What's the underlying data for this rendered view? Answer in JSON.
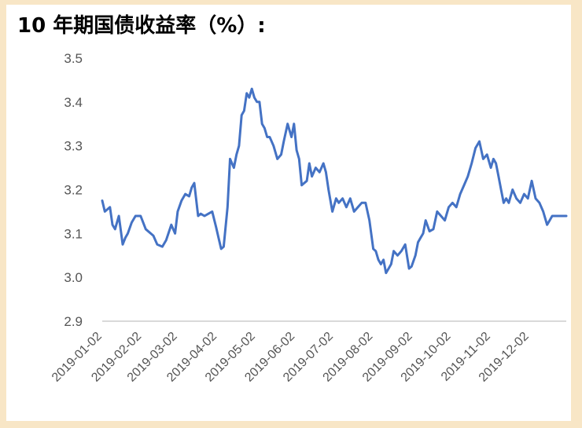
{
  "title": "10 年期国债收益率（%）:",
  "colors": {
    "background": "#f8e6c6",
    "line": "#4472c4",
    "axis": "#d9d9d9",
    "text": "#555555"
  },
  "chart_data": {
    "type": "line",
    "title": "10 年期国债收益率（%）:",
    "xlabel": "",
    "ylabel": "",
    "grid": false,
    "legend": "none",
    "ylim": [
      2.9,
      3.5
    ],
    "yticks": [
      "2.9",
      "3.0",
      "3.1",
      "3.2",
      "3.3",
      "3.4",
      "3.5"
    ],
    "xlim": [
      "2019-01-02",
      "2019-12-31"
    ],
    "xticks": [
      "2019-01-02",
      "2019-02-02",
      "2019-03-02",
      "2019-04-02",
      "2019-05-02",
      "2019-06-02",
      "2019-07-02",
      "2019-08-02",
      "2019-09-02",
      "2019-10-02",
      "2019-11-02",
      "2019-12-02"
    ],
    "series": [
      {
        "x": [
          "2019-01-02",
          "2019-01-04",
          "2019-01-08",
          "2019-01-10",
          "2019-01-12",
          "2019-01-15",
          "2019-01-18",
          "2019-01-20",
          "2019-01-22",
          "2019-01-25",
          "2019-01-28",
          "2019-02-01",
          "2019-02-05",
          "2019-02-11",
          "2019-02-14",
          "2019-02-18",
          "2019-02-21",
          "2019-02-25",
          "2019-02-28",
          "2019-03-02",
          "2019-03-05",
          "2019-03-08",
          "2019-03-11",
          "2019-03-13",
          "2019-03-15",
          "2019-03-18",
          "2019-03-20",
          "2019-03-23",
          "2019-03-26",
          "2019-03-29",
          "2019-04-01",
          "2019-04-03",
          "2019-04-05",
          "2019-04-07",
          "2019-04-10",
          "2019-04-12",
          "2019-04-15",
          "2019-04-17",
          "2019-04-19",
          "2019-04-21",
          "2019-04-23",
          "2019-04-25",
          "2019-04-27",
          "2019-04-29",
          "2019-05-01",
          "2019-05-03",
          "2019-05-05",
          "2019-05-07",
          "2019-05-09",
          "2019-05-11",
          "2019-05-13",
          "2019-05-16",
          "2019-05-19",
          "2019-05-22",
          "2019-05-24",
          "2019-05-27",
          "2019-05-30",
          "2019-06-01",
          "2019-06-03",
          "2019-06-05",
          "2019-06-07",
          "2019-06-09",
          "2019-06-11",
          "2019-06-13",
          "2019-06-15",
          "2019-06-18",
          "2019-06-21",
          "2019-06-24",
          "2019-06-26",
          "2019-06-28",
          "2019-07-01",
          "2019-07-04",
          "2019-07-06",
          "2019-07-09",
          "2019-07-12",
          "2019-07-15",
          "2019-07-18",
          "2019-07-21",
          "2019-07-24",
          "2019-07-27",
          "2019-07-30",
          "2019-08-02",
          "2019-08-04",
          "2019-08-06",
          "2019-08-08",
          "2019-08-10",
          "2019-08-12",
          "2019-08-14",
          "2019-08-16",
          "2019-08-18",
          "2019-08-21",
          "2019-08-24",
          "2019-08-27",
          "2019-08-30",
          "2019-09-01",
          "2019-09-04",
          "2019-09-06",
          "2019-09-08",
          "2019-09-10",
          "2019-09-12",
          "2019-09-15",
          "2019-09-18",
          "2019-09-21",
          "2019-09-24",
          "2019-09-27",
          "2019-09-30",
          "2019-10-03",
          "2019-10-06",
          "2019-10-09",
          "2019-10-12",
          "2019-10-15",
          "2019-10-18",
          "2019-10-21",
          "2019-10-24",
          "2019-10-27",
          "2019-10-30",
          "2019-11-02",
          "2019-11-04",
          "2019-11-06",
          "2019-11-08",
          "2019-11-10",
          "2019-11-12",
          "2019-11-14",
          "2019-11-16",
          "2019-11-19",
          "2019-11-22",
          "2019-11-25",
          "2019-11-28",
          "2019-12-01",
          "2019-12-04",
          "2019-12-07",
          "2019-12-10",
          "2019-12-13",
          "2019-12-16",
          "2019-12-18",
          "2019-12-20",
          "2019-12-22",
          "2019-12-24",
          "2019-12-26",
          "2019-12-28",
          "2019-12-31"
        ],
        "values": [
          3.175,
          3.15,
          3.16,
          3.12,
          3.11,
          3.14,
          3.075,
          3.09,
          3.1,
          3.125,
          3.14,
          3.14,
          3.11,
          3.095,
          3.075,
          3.07,
          3.085,
          3.12,
          3.1,
          3.15,
          3.175,
          3.19,
          3.185,
          3.205,
          3.215,
          3.14,
          3.145,
          3.14,
          3.145,
          3.15,
          3.115,
          3.09,
          3.065,
          3.07,
          3.16,
          3.27,
          3.25,
          3.28,
          3.3,
          3.37,
          3.38,
          3.42,
          3.41,
          3.43,
          3.41,
          3.4,
          3.4,
          3.35,
          3.34,
          3.32,
          3.32,
          3.3,
          3.27,
          3.28,
          3.31,
          3.35,
          3.32,
          3.35,
          3.29,
          3.27,
          3.21,
          3.215,
          3.22,
          3.26,
          3.23,
          3.25,
          3.24,
          3.26,
          3.24,
          3.2,
          3.15,
          3.18,
          3.17,
          3.18,
          3.16,
          3.18,
          3.15,
          3.16,
          3.17,
          3.17,
          3.13,
          3.065,
          3.06,
          3.04,
          3.03,
          3.04,
          3.01,
          3.02,
          3.03,
          3.06,
          3.05,
          3.06,
          3.075,
          3.02,
          3.025,
          3.05,
          3.08,
          3.09,
          3.1,
          3.13,
          3.105,
          3.11,
          3.15,
          3.14,
          3.13,
          3.16,
          3.17,
          3.16,
          3.19,
          3.21,
          3.23,
          3.26,
          3.295,
          3.31,
          3.27,
          3.28,
          3.25,
          3.27,
          3.26,
          3.23,
          3.2,
          3.17,
          3.18,
          3.17,
          3.2,
          3.18,
          3.17,
          3.19,
          3.18,
          3.22,
          3.18,
          3.17,
          3.15,
          3.12,
          3.13,
          3.14,
          3.14,
          3.14,
          3.14,
          3.14,
          3.14
        ]
      }
    ]
  }
}
